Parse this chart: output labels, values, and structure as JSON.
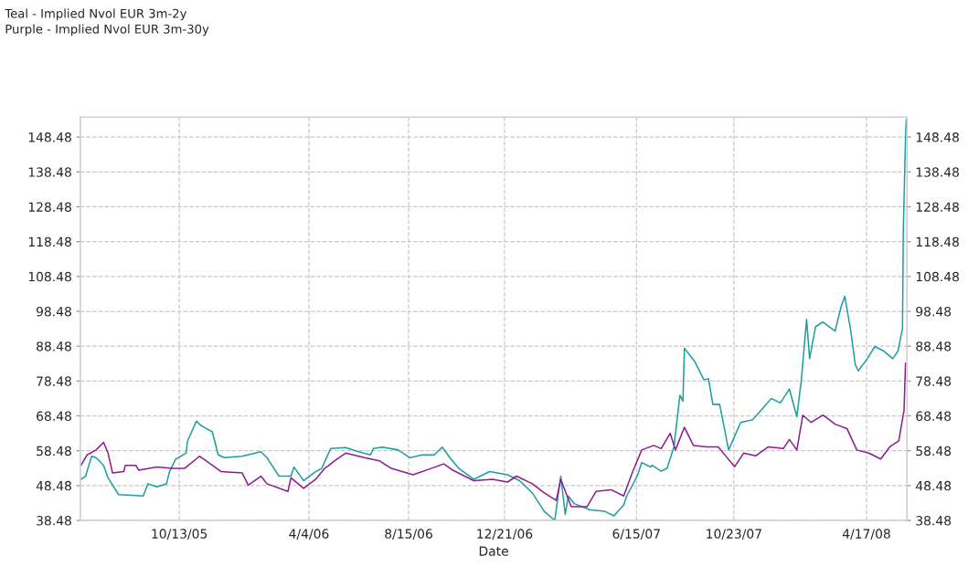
{
  "chart_data": {
    "type": "line",
    "title": "Teal - Implied Nvol EUR 3m-2y",
    "subtitle": "Purple - Implied Nvol EUR 3m-30y",
    "xlabel": "Date",
    "xlim": [
      "2005-06-03",
      "2008-06-10"
    ],
    "xticks": [
      {
        "value": "2005-10-13",
        "label": "10/13/05"
      },
      {
        "value": "2006-04-04",
        "label": "4/4/06"
      },
      {
        "value": "2006-08-15",
        "label": "8/15/06"
      },
      {
        "value": "2006-12-21",
        "label": "12/21/06"
      },
      {
        "value": "2007-06-15",
        "label": "6/15/07"
      },
      {
        "value": "2007-10-23",
        "label": "10/23/07"
      },
      {
        "value": "2008-04-17",
        "label": "4/17/08"
      }
    ],
    "ylim": [
      38.48,
      154.2
    ],
    "yticks": [
      38.48,
      48.48,
      58.48,
      68.48,
      78.48,
      88.48,
      98.48,
      108.48,
      118.48,
      128.48,
      138.48,
      148.48
    ],
    "y2lim": [
      38.48,
      154.2
    ],
    "y2ticks": [
      38.48,
      48.48,
      58.48,
      68.48,
      78.48,
      88.48,
      98.48,
      108.48,
      118.48,
      128.48,
      138.48,
      148.48
    ],
    "grid": true,
    "line_style": "solid",
    "marker": "none",
    "series": [
      {
        "color": "#1f9e9e",
        "x": [
          "2005-06-04",
          "2005-06-10",
          "2005-06-18",
          "2005-06-24",
          "2005-07-04",
          "2005-07-10",
          "2005-07-24",
          "2005-08-10",
          "2005-08-26",
          "2005-09-01",
          "2005-09-13",
          "2005-09-26",
          "2005-09-30",
          "2005-10-08",
          "2005-10-22",
          "2005-10-24",
          "2005-11-05",
          "2005-11-11",
          "2005-11-26",
          "2005-12-04",
          "2005-12-12",
          "2006-01-05",
          "2006-01-30",
          "2006-02-07",
          "2006-02-23",
          "2006-03-11",
          "2006-03-15",
          "2006-03-28",
          "2006-04-13",
          "2006-04-21",
          "2006-05-03",
          "2006-05-23",
          "2006-06-09",
          "2006-06-25",
          "2006-06-29",
          "2006-07-11",
          "2006-08-01",
          "2006-08-17",
          "2006-09-02",
          "2006-09-18",
          "2006-09-29",
          "2006-10-09",
          "2006-10-21",
          "2006-11-10",
          "2006-12-01",
          "2006-12-25",
          "2007-01-10",
          "2007-01-27",
          "2007-02-12",
          "2007-02-26",
          "2007-03-06",
          "2007-03-12",
          "2007-03-16",
          "2007-03-24",
          "2007-04-14",
          "2007-05-04",
          "2007-05-16",
          "2007-05-29",
          "2007-06-02",
          "2007-06-16",
          "2007-06-22",
          "2007-07-04",
          "2007-07-06",
          "2007-07-18",
          "2007-07-26",
          "2007-08-04",
          "2007-08-12",
          "2007-08-16",
          "2007-08-18",
          "2007-09-01",
          "2007-09-13",
          "2007-09-19",
          "2007-09-25",
          "2007-10-04",
          "2007-10-16",
          "2007-11-01",
          "2007-11-17",
          "2007-11-30",
          "2007-12-12",
          "2007-12-24",
          "2008-01-05",
          "2008-01-15",
          "2008-01-21",
          "2008-01-28",
          "2008-02-01",
          "2008-02-09",
          "2008-02-19",
          "2008-03-06",
          "2008-03-14",
          "2008-03-19",
          "2008-03-27",
          "2008-04-02",
          "2008-04-06",
          "2008-04-18",
          "2008-04-28",
          "2008-05-10",
          "2008-05-22",
          "2008-05-29",
          "2008-06-04",
          "2008-06-05",
          "2008-06-08",
          "2008-06-09",
          "2008-06-10"
        ],
        "values": [
          50.3,
          51.2,
          56.9,
          56.5,
          54.3,
          50.7,
          45.9,
          45.7,
          45.5,
          49.0,
          48.1,
          49.0,
          52.5,
          56.0,
          57.8,
          61.3,
          67.0,
          65.7,
          63.9,
          57.3,
          56.5,
          56.9,
          58.2,
          56.5,
          51.2,
          51.2,
          53.8,
          49.9,
          52.5,
          53.4,
          59.1,
          59.4,
          58.2,
          57.3,
          59.1,
          59.5,
          58.7,
          56.5,
          57.3,
          57.3,
          59.5,
          56.5,
          53.4,
          50.3,
          52.5,
          51.6,
          49.9,
          46.4,
          41.1,
          38.5,
          51.2,
          40.2,
          45.5,
          43.3,
          41.5,
          41.1,
          39.8,
          42.9,
          45.5,
          51.2,
          55.1,
          53.8,
          54.3,
          52.6,
          53.5,
          59.6,
          74.4,
          72.7,
          87.9,
          84.0,
          78.8,
          79.2,
          71.8,
          71.8,
          58.7,
          66.6,
          67.4,
          70.5,
          73.5,
          72.2,
          76.2,
          68.3,
          78.8,
          96.2,
          84.9,
          94.1,
          95.4,
          92.8,
          99.8,
          102.8,
          92.8,
          83.2,
          81.4,
          84.9,
          88.4,
          87.1,
          84.9,
          87.1,
          93.6,
          121.0,
          148.5,
          153.5,
          151.0
        ]
      },
      {
        "color": "#8e1c8e",
        "x": [
          "2005-06-04",
          "2005-06-12",
          "2005-06-24",
          "2005-07-04",
          "2005-07-10",
          "2005-07-16",
          "2005-07-31",
          "2005-08-02",
          "2005-08-16",
          "2005-08-20",
          "2005-09-13",
          "2005-10-04",
          "2005-10-20",
          "2005-11-09",
          "2005-11-21",
          "2005-12-08",
          "2006-01-05",
          "2006-01-13",
          "2006-01-30",
          "2006-02-07",
          "2006-03-07",
          "2006-03-11",
          "2006-03-28",
          "2006-04-13",
          "2006-04-25",
          "2006-05-11",
          "2006-05-23",
          "2006-06-17",
          "2006-07-07",
          "2006-07-23",
          "2006-08-21",
          "2006-09-14",
          "2006-10-01",
          "2006-10-13",
          "2006-11-10",
          "2006-12-05",
          "2006-12-25",
          "2007-01-06",
          "2007-01-27",
          "2007-02-12",
          "2007-02-28",
          "2007-03-06",
          "2007-03-20",
          "2007-04-10",
          "2007-04-22",
          "2007-05-12",
          "2007-05-29",
          "2007-06-10",
          "2007-06-22",
          "2007-07-08",
          "2007-07-18",
          "2007-07-30",
          "2007-08-06",
          "2007-08-18",
          "2007-08-30",
          "2007-09-17",
          "2007-10-02",
          "2007-10-12",
          "2007-10-24",
          "2007-11-05",
          "2007-11-21",
          "2007-12-08",
          "2007-12-28",
          "2008-01-05",
          "2008-01-15",
          "2008-01-23",
          "2008-02-03",
          "2008-02-19",
          "2008-03-06",
          "2008-03-22",
          "2008-04-04",
          "2008-04-20",
          "2008-05-06",
          "2008-05-18",
          "2008-05-30",
          "2008-06-06",
          "2008-06-08"
        ],
        "values": [
          54.3,
          57.3,
          58.7,
          60.9,
          57.8,
          52.1,
          52.5,
          54.3,
          54.3,
          52.9,
          53.8,
          53.4,
          53.4,
          56.9,
          55.1,
          52.5,
          52.1,
          48.6,
          51.2,
          49.0,
          46.8,
          50.7,
          47.7,
          50.3,
          53.4,
          56.0,
          57.8,
          56.5,
          55.6,
          53.4,
          51.6,
          53.4,
          54.7,
          52.9,
          49.9,
          50.3,
          49.5,
          51.2,
          49.0,
          46.4,
          44.2,
          50.3,
          42.4,
          42.4,
          46.8,
          47.3,
          45.5,
          52.5,
          58.7,
          60.0,
          59.1,
          63.5,
          58.7,
          65.2,
          60.0,
          59.6,
          59.6,
          57.0,
          53.9,
          57.8,
          57.0,
          59.6,
          59.1,
          61.7,
          58.7,
          68.7,
          66.6,
          68.7,
          66.1,
          64.8,
          58.7,
          57.8,
          56.1,
          59.6,
          61.3,
          70.0,
          83.6
        ]
      }
    ]
  }
}
